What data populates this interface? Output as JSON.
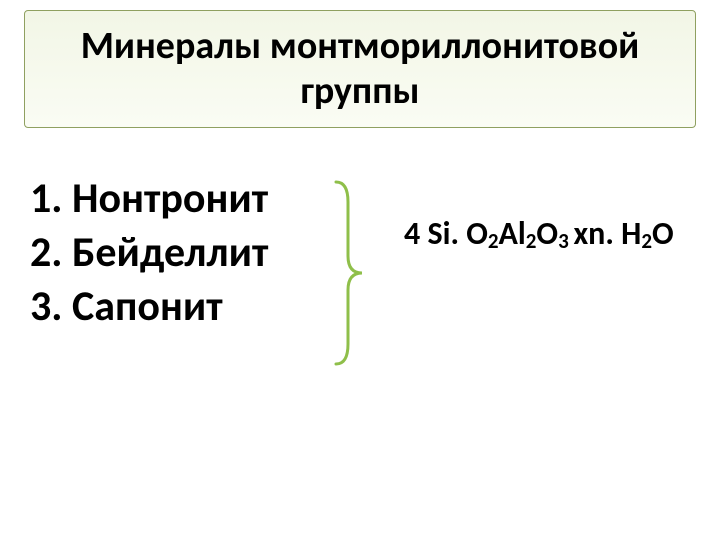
{
  "title": "Минералы монтмориллонитовой группы",
  "list": {
    "items": [
      "1. Нонтронит",
      "2. Бейделлит",
      "3. Сапонит"
    ]
  },
  "formula": {
    "parts": [
      {
        "t": "4 Si. O",
        "sub": false
      },
      {
        "t": "2",
        "sub": true
      },
      {
        "t": "Al",
        "sub": false
      },
      {
        "t": "2",
        "sub": true
      },
      {
        "t": "O",
        "sub": false
      },
      {
        "t": "3 ",
        "sub": true
      },
      {
        "t": "xn. H",
        "sub": false
      },
      {
        "t": "2",
        "sub": true
      },
      {
        "t": "O",
        "sub": false
      }
    ]
  },
  "style": {
    "title_border_color": "#8fa060",
    "title_bg_top": "#f2f6e6",
    "title_bg_bottom": "#fafcf4",
    "title_fontsize": 38,
    "list_fontsize": 42,
    "formula_fontsize": 32,
    "sub_fontsize": 21,
    "bracket_color": "#8fbf4a",
    "bracket_stroke_width": 3,
    "text_color": "#000000",
    "background": "#ffffff"
  }
}
